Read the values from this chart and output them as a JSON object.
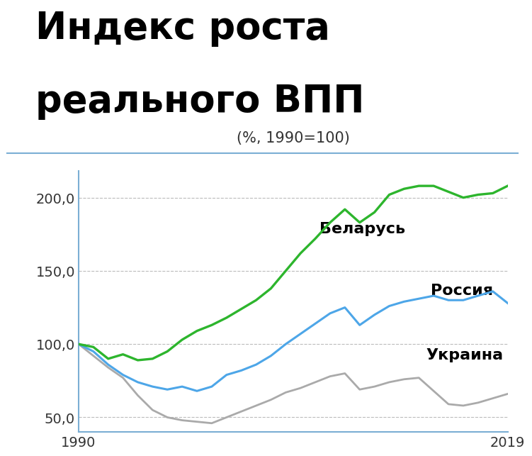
{
  "title_line1": "Индекс роста",
  "title_line2": "реального ВПП",
  "subtitle": "(%, 1990=100)",
  "years": [
    1990,
    1991,
    1992,
    1993,
    1994,
    1995,
    1996,
    1997,
    1998,
    1999,
    2000,
    2001,
    2002,
    2003,
    2004,
    2005,
    2006,
    2007,
    2008,
    2009,
    2010,
    2011,
    2012,
    2013,
    2014,
    2015,
    2016,
    2017,
    2018,
    2019
  ],
  "belarus": [
    100,
    98,
    90,
    93,
    89,
    90,
    95,
    103,
    109,
    113,
    118,
    124,
    130,
    138,
    150,
    162,
    172,
    183,
    192,
    183,
    190,
    202,
    206,
    208,
    208,
    204,
    200,
    202,
    203,
    208
  ],
  "russia": [
    100,
    95,
    86,
    79,
    74,
    71,
    69,
    71,
    68,
    71,
    79,
    82,
    86,
    92,
    100,
    107,
    114,
    121,
    125,
    113,
    120,
    126,
    129,
    131,
    133,
    130,
    130,
    133,
    136,
    128
  ],
  "ukraine": [
    100,
    92,
    84,
    77,
    65,
    55,
    50,
    48,
    47,
    46,
    50,
    54,
    58,
    62,
    67,
    70,
    74,
    78,
    80,
    69,
    71,
    74,
    76,
    77,
    68,
    59,
    58,
    60,
    63,
    66
  ],
  "belarus_label": "Беларусь",
  "russia_label": "Россия",
  "ukraine_label": "Украина",
  "belarus_color": "#2db52d",
  "russia_color": "#4da6e8",
  "ukraine_color": "#aaaaaa",
  "ylim": [
    40,
    218
  ],
  "yticks": [
    50.0,
    100.0,
    150.0,
    200.0
  ],
  "xtick_labels": [
    "1990",
    "2019"
  ],
  "title_color": "#000000",
  "title_bg": "#ffffff",
  "plot_bg": "#ffffff",
  "grid_color": "#bbbbbb",
  "spine_color": "#7bafd4",
  "title_fontsize": 38,
  "subtitle_fontsize": 15,
  "label_fontsize": 16,
  "tick_fontsize": 14
}
